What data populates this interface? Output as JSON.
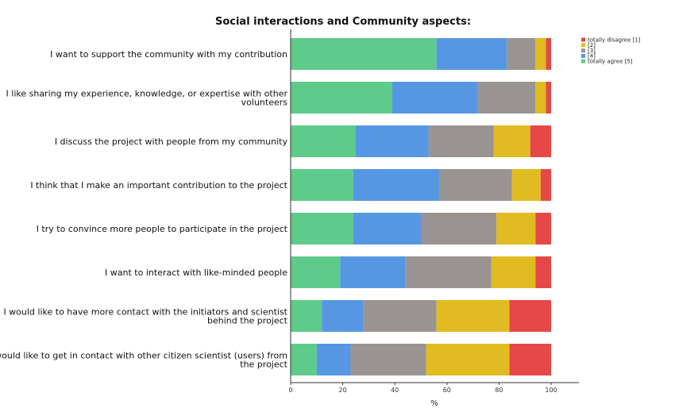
{
  "chart_data": {
    "type": "bar",
    "orientation": "horizontal",
    "stacked": true,
    "title": "Social interactions and Community aspects:",
    "xlabel": "%",
    "ylabel": "",
    "xlim": [
      0,
      100
    ],
    "xticks": [
      0,
      20,
      40,
      60,
      80,
      100
    ],
    "grid": false,
    "legend_position": "top-right",
    "categories": [
      [
        "I want to support the community with my contribution"
      ],
      [
        "I like sharing my experience, knowledge, or expertise with other",
        "volunteers"
      ],
      [
        "I discuss the project with people from my community"
      ],
      [
        "I think that I make an important contribution to the project"
      ],
      [
        "I try to convince more people to participate in the project"
      ],
      [
        "I want to interact with like-minded people"
      ],
      [
        "I would like to have more contact with the initiators and scientist",
        "behind the project"
      ],
      [
        "I would like to get in contact with other citizen scientist (users) from",
        "the project"
      ]
    ],
    "series": [
      {
        "name": "totally agree [5]",
        "color": "#5ecb8b",
        "values": [
          56,
          39,
          25,
          24,
          24,
          19,
          12,
          10
        ]
      },
      {
        "name": "[4]",
        "color": "#5597e3",
        "values": [
          27,
          33,
          28,
          33,
          26,
          25,
          16,
          13
        ]
      },
      {
        "name": "[3]",
        "color": "#999491",
        "values": [
          11,
          22,
          25,
          28,
          29,
          33,
          28,
          29
        ]
      },
      {
        "name": "[2]",
        "color": "#e1bb22",
        "values": [
          4,
          4,
          14,
          11,
          15,
          17,
          28,
          32
        ]
      },
      {
        "name": "totally disagree [1]",
        "color": "#e64848",
        "values": [
          2,
          2,
          8,
          4,
          6,
          6,
          16,
          16
        ]
      }
    ],
    "legend_order": [
      "totally disagree [1]",
      "[2]",
      "[3]",
      "[4]",
      "totally agree [5]"
    ]
  }
}
